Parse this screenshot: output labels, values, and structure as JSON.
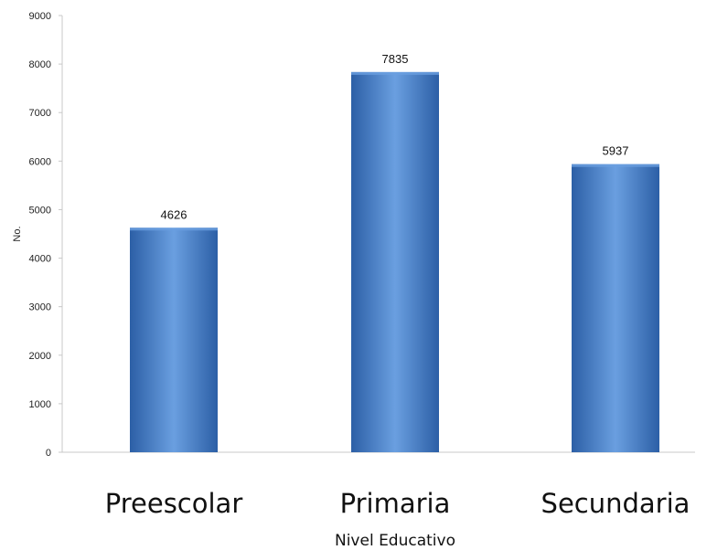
{
  "chart_data": {
    "type": "bar",
    "categories": [
      "Preescolar",
      "Primaria",
      "Secundaria"
    ],
    "values": [
      4626,
      7835,
      5937
    ],
    "data_labels": [
      "4626",
      "7835",
      "5937"
    ],
    "xlabel": "Nivel Educativo",
    "ylabel": "No.",
    "ylim": [
      0,
      9000
    ],
    "yticks": [
      "0",
      "1000",
      "2000",
      "3000",
      "4000",
      "5000",
      "6000",
      "7000",
      "8000",
      "9000"
    ],
    "grid": false,
    "legend": "none",
    "colors": {
      "bar": "#3a78c8",
      "bar_light": "#6a9fe0",
      "bar_dark": "#2c5fa6",
      "axis": "#c8c8c8"
    }
  }
}
